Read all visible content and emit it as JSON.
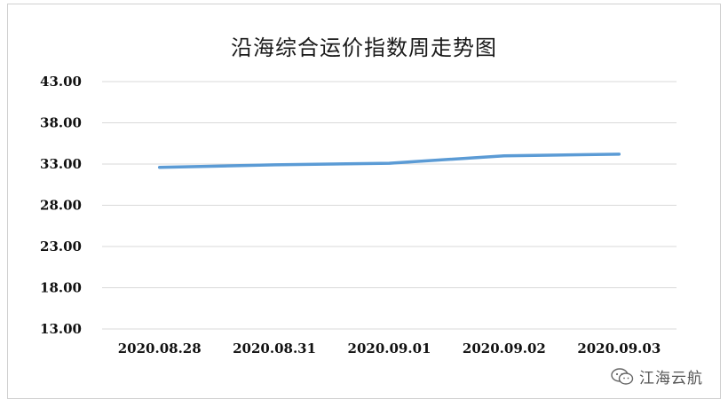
{
  "chart_data": {
    "type": "line",
    "title": "沿海综合运价指数周走势图",
    "categories": [
      "2020.08.28",
      "2020.08.31",
      "2020.09.01",
      "2020.09.02",
      "2020.09.03"
    ],
    "series": [
      {
        "values": [
          32.6,
          32.9,
          33.1,
          34.0,
          34.2
        ],
        "color": "#5b9bd5"
      }
    ],
    "ylim": [
      13,
      43
    ],
    "yticks": [
      "13.00",
      "18.00",
      "23.00",
      "28.00",
      "33.00",
      "38.00",
      "43.00"
    ],
    "ytick_values": [
      13,
      18,
      23,
      28,
      33,
      38,
      43
    ],
    "grid": true,
    "xlabel": "",
    "ylabel": ""
  },
  "watermark": {
    "text": "江海云航",
    "icon": "wechat-icon"
  },
  "colors": {
    "line": "#5b9bd5",
    "grid": "#d9d9d9"
  }
}
